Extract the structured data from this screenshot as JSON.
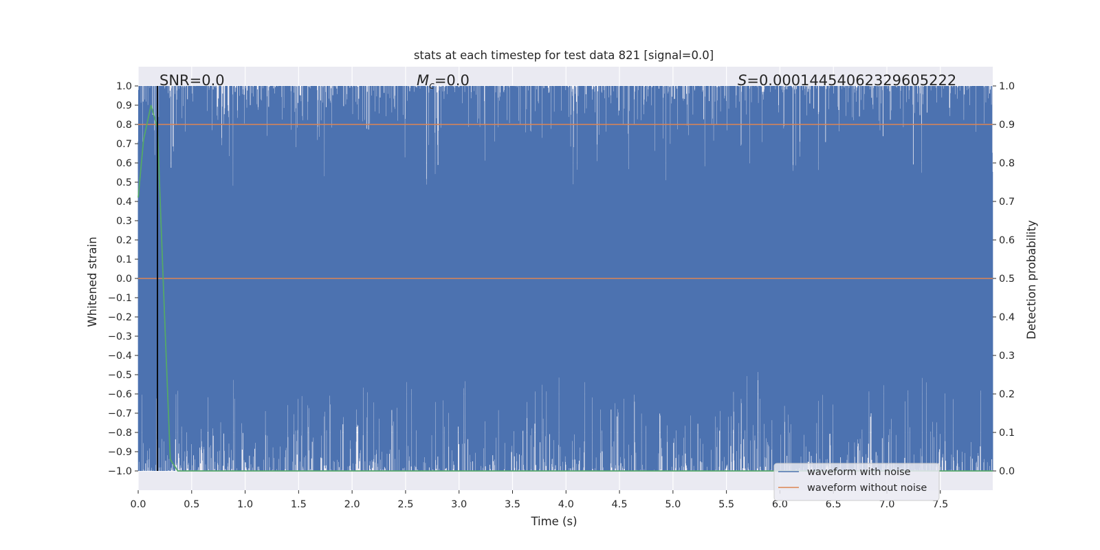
{
  "chart_data": {
    "type": "line",
    "title": "stats at each timestep for test data 821 [signal=0.0]",
    "xlabel": "Time (s)",
    "ylabel": "Whitened strain",
    "y2label": "Detection probability",
    "xlim": [
      0.0,
      7.99
    ],
    "ylim": [
      -1.1,
      1.1
    ],
    "y2lim": [
      -0.05,
      1.05
    ],
    "xticks": [
      "0.0",
      "0.5",
      "1.0",
      "1.5",
      "2.0",
      "2.5",
      "3.0",
      "3.5",
      "4.0",
      "4.5",
      "5.0",
      "5.5",
      "6.0",
      "6.5",
      "7.0",
      "7.5"
    ],
    "yticks": [
      "1.0",
      "0.9",
      "0.8",
      "0.7",
      "0.6",
      "0.5",
      "0.4",
      "0.3",
      "0.2",
      "0.1",
      "0.0",
      "−0.1",
      "−0.2",
      "−0.3",
      "−0.4",
      "−0.5",
      "−0.6",
      "−0.7",
      "−0.8",
      "−0.9",
      "−1.0"
    ],
    "y2ticks": [
      "1.0",
      "0.9",
      "0.8",
      "0.7",
      "0.6",
      "0.5",
      "0.4",
      "0.3",
      "0.2",
      "0.1",
      "0.0"
    ],
    "grid": true,
    "legend_position": "lower-right",
    "annotations": {
      "snr": "SNR=0.0",
      "mc_symbol": "M",
      "mc_subscript": "c",
      "mc_value": "=0.0",
      "s_symbol": "S",
      "s_value": "=0.00014454062329605222"
    },
    "series": [
      {
        "name": "waveform with noise",
        "color": "#4c72b0",
        "description_range": [
          -1.0,
          1.0
        ]
      },
      {
        "name": "waveform without noise",
        "color": "#dd8452",
        "x": [
          0.0,
          7.99
        ],
        "y": [
          0.0,
          0.0
        ]
      },
      {
        "color": "#55a868",
        "axis": "right",
        "x": [
          0.0,
          0.05,
          0.12,
          0.18,
          0.24,
          0.3,
          0.37,
          0.5,
          1.0,
          2.0,
          3.0,
          4.0,
          5.0,
          6.0,
          7.0,
          7.99
        ],
        "y": [
          0.71,
          0.86,
          0.95,
          0.89,
          0.45,
          0.03,
          0.0,
          0.0,
          0.0,
          0.0,
          0.0,
          0.0,
          0.0,
          0.0,
          0.0,
          0.0
        ]
      },
      {
        "color": "#dd8452",
        "axis": "right",
        "x": [
          0.0,
          7.99
        ],
        "y": [
          0.9,
          0.9
        ]
      }
    ],
    "vertical_marker": {
      "x": 0.18,
      "color": "#000000"
    }
  },
  "colors": {
    "plot_bg": "#eaeaf2",
    "grid": "#ffffff",
    "noise": "#4c72b0",
    "clean": "#dd8452",
    "prob": "#55a868",
    "threshold": "#dd8452",
    "marker": "#000000",
    "text": "#262626"
  }
}
